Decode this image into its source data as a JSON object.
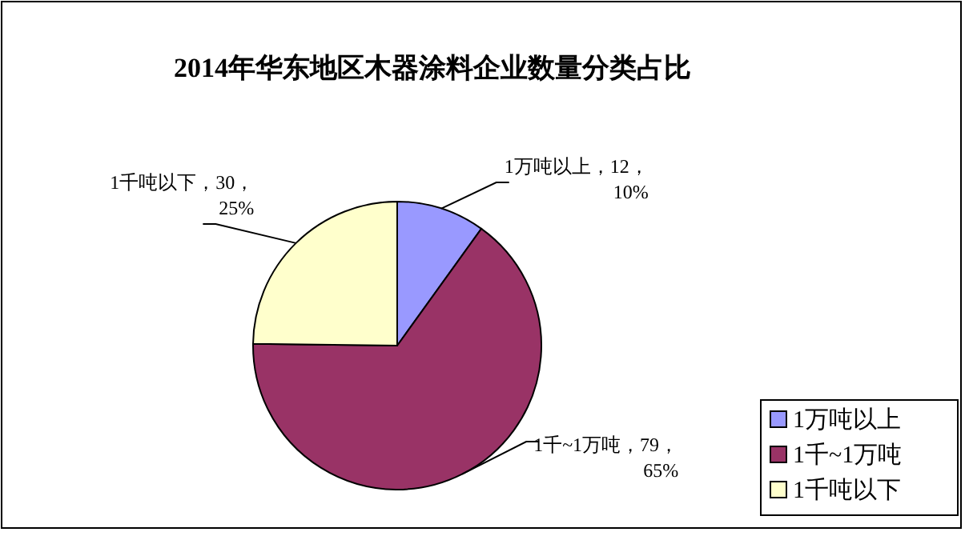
{
  "chart_data": {
    "type": "pie",
    "title": "2014年华东地区木器涂料企业数量分类占比",
    "categories": [
      "1万吨以上",
      "1千~1万吨",
      "1千吨以下"
    ],
    "values": [
      12,
      79,
      30
    ],
    "value_labels": [
      "1万吨以上，12，10%",
      "1千~1万吨，79，65%",
      "1千吨以下，30，25%"
    ],
    "colors": [
      "#9999ff",
      "#993366",
      "#ffffcc"
    ],
    "legend": "bottom right"
  }
}
